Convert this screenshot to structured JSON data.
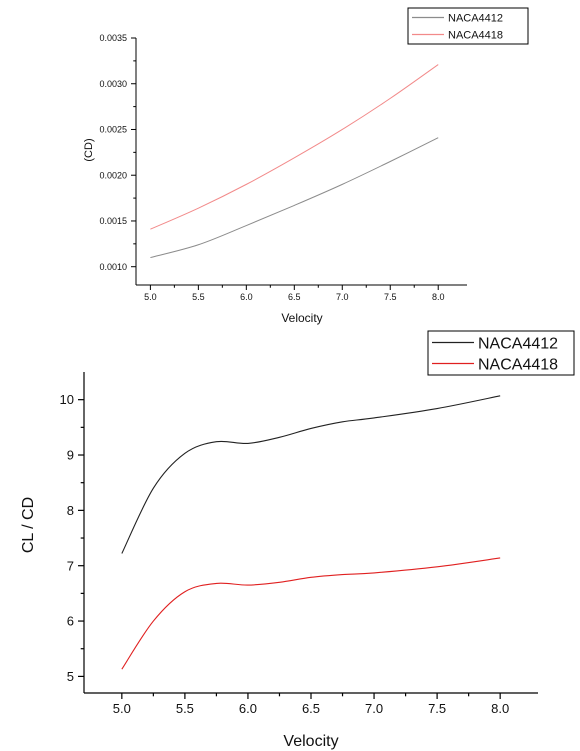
{
  "chart_data": [
    {
      "type": "line",
      "title": "",
      "xlabel": "Velocity",
      "ylabel": "(CD)",
      "xlim": [
        4.85,
        8.3
      ],
      "ylim": [
        0.0008,
        0.0035
      ],
      "x_ticks": [
        "5.0",
        "5.5",
        "6.0",
        "6.5",
        "7.0",
        "7.5",
        "8.0"
      ],
      "y_ticks": [
        "0.0010",
        "0.0015",
        "0.0020",
        "0.0025",
        "0.0030",
        "0.0035"
      ],
      "grid": false,
      "legend_position": "top-right",
      "x": [
        5.0,
        5.5,
        6.0,
        6.5,
        7.0,
        7.5,
        8.0
      ],
      "series": [
        {
          "name": "NACA4412",
          "color": "#8c8c8c",
          "values": [
            0.0011,
            0.00124,
            0.00145,
            0.00167,
            0.0019,
            0.00215,
            0.00241
          ]
        },
        {
          "name": "NACA4418",
          "color": "#f28a8a",
          "values": [
            0.00141,
            0.00164,
            0.0019,
            0.00219,
            0.0025,
            0.00284,
            0.00321
          ]
        }
      ]
    },
    {
      "type": "line",
      "title": "",
      "xlabel": "Velocity",
      "ylabel": "CL / CD",
      "xlim": [
        4.7,
        8.3
      ],
      "ylim": [
        4.7,
        10.5
      ],
      "x_ticks": [
        "5.0",
        "5.5",
        "6.0",
        "6.5",
        "7.0",
        "7.5",
        "8.0"
      ],
      "y_ticks": [
        "5",
        "6",
        "7",
        "8",
        "9",
        "10"
      ],
      "grid": false,
      "legend_position": "top-right",
      "x": [
        5.0,
        5.25,
        5.5,
        5.75,
        6.0,
        6.25,
        6.5,
        6.75,
        7.0,
        7.5,
        8.0
      ],
      "series": [
        {
          "name": "NACA4412",
          "color": "#222222",
          "values": [
            7.22,
            8.4,
            9.03,
            9.24,
            9.21,
            9.32,
            9.48,
            9.6,
            9.67,
            9.84,
            10.07
          ]
        },
        {
          "name": "NACA4418",
          "color": "#e02020",
          "values": [
            5.13,
            6.0,
            6.53,
            6.68,
            6.65,
            6.7,
            6.79,
            6.84,
            6.87,
            6.98,
            7.14
          ]
        }
      ]
    }
  ]
}
